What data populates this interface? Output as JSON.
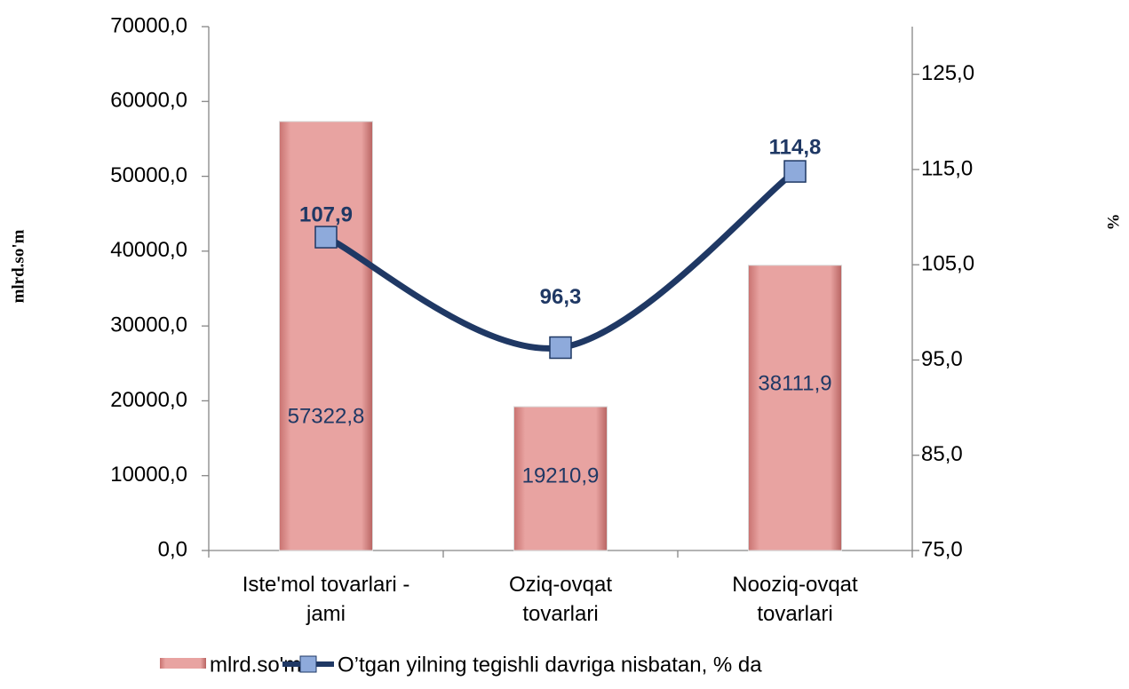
{
  "chart_data": {
    "type": "bar_line",
    "y_axis_label": "mlrd.so'm",
    "y2_axis_label": "%",
    "categories": [
      "Iste'mol tovarlari - jami",
      "Oziq-ovqat tovarlari",
      "Nooziq-ovqat tovarlari"
    ],
    "series": [
      {
        "name": "mlrd.so'm",
        "color": "#e8a3a1",
        "type": "bar",
        "values": [
          57322.8,
          19210.9,
          38111.9
        ],
        "value_labels": [
          "57322,8",
          "19210,9",
          "38111,9"
        ]
      },
      {
        "name": "O’tgan yilning tegishli davriga nisbatan, % da",
        "color": "#1f3864",
        "marker_color": "#8eaadb",
        "type": "line",
        "axis": "y2",
        "values": [
          107.9,
          96.3,
          114.8
        ],
        "value_labels": [
          "107,9",
          "96,3",
          "114,8"
        ]
      }
    ],
    "ylim": [
      0,
      70000
    ],
    "yticks": [
      {
        "value": 0,
        "label": "0,0"
      },
      {
        "value": 10000,
        "label": "10000,0"
      },
      {
        "value": 20000,
        "label": "20000,0"
      },
      {
        "value": 30000,
        "label": "30000,0"
      },
      {
        "value": 40000,
        "label": "40000,0"
      },
      {
        "value": 50000,
        "label": "50000,0"
      },
      {
        "value": 60000,
        "label": "60000,0"
      },
      {
        "value": 70000,
        "label": "70000,0"
      }
    ],
    "y2lim": [
      75,
      130
    ],
    "y2ticks": [
      {
        "value": 75,
        "label": "75,0"
      },
      {
        "value": 85,
        "label": "85,0"
      },
      {
        "value": 95,
        "label": "95,0"
      },
      {
        "value": 105,
        "label": "105,0"
      },
      {
        "value": 115,
        "label": "115,0"
      },
      {
        "value": 125,
        "label": "125,0"
      }
    ],
    "legend": "bottom"
  }
}
